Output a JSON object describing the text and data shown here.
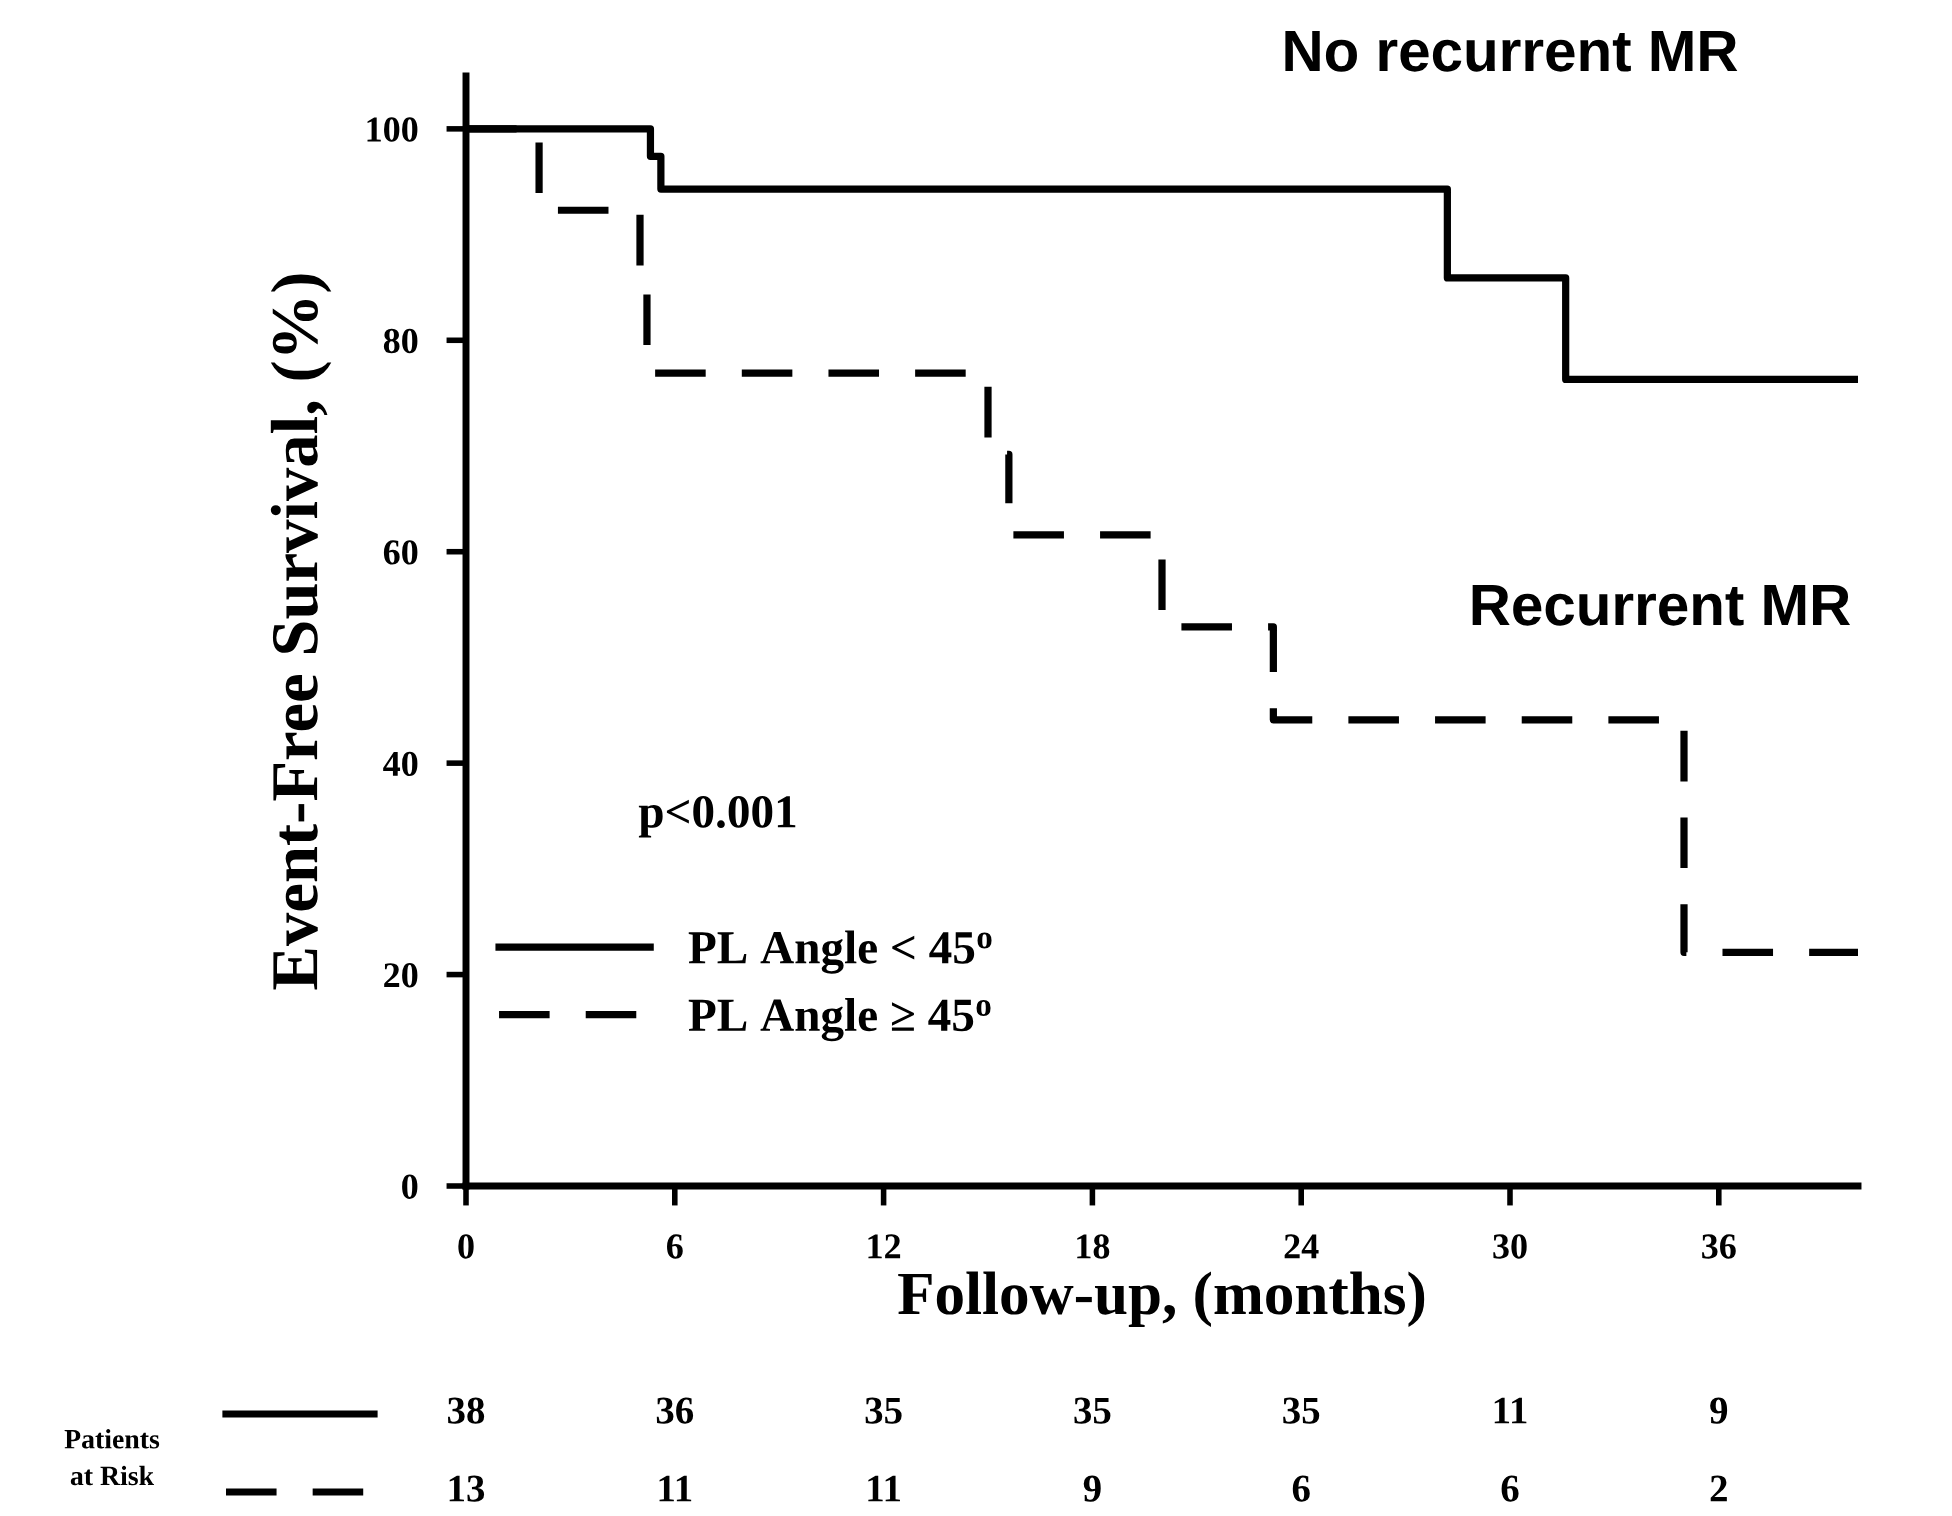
{
  "chart_data": {
    "type": "step",
    "xlabel": "Follow-up, (months)",
    "ylabel": "Event-Free Survival, (%)",
    "series": [
      {
        "name": "PL Angle < 45$^{o}$",
        "color": "#000000",
        "line_style": "solid",
        "x": [
          0,
          5.3,
          5.6,
          28.2,
          31.6,
          40
        ],
        "values": [
          100,
          97.4,
          94.3,
          85.9,
          76.3,
          76.3
        ]
      },
      {
        "name": "PL Angle ≥ 45$^{o}$",
        "color": "#000000",
        "line_style": "dashed",
        "x": [
          0,
          2.1,
          5.0,
          5.2,
          15.0,
          15.6,
          20.0,
          23.2,
          35.0,
          40
        ],
        "values": [
          100,
          92.3,
          84.6,
          76.9,
          69.2,
          61.6,
          52.9,
          44.1,
          22.1,
          22.1
        ]
      }
    ],
    "xlim": [
      0,
      40
    ],
    "xticks": [
      0,
      6,
      12,
      18,
      24,
      30,
      36
    ],
    "ylim": [
      0,
      105
    ],
    "yticks": [
      0,
      20,
      40,
      60,
      80,
      100
    ],
    "grid": false,
    "legend": "bottom left",
    "marker": "none",
    "annotations": [
      "No recurrent MR",
      "Recurrent MR",
      "p<0.001",
      "Patients\nat Risk",
      "38",
      "36",
      "35",
      "35",
      "35",
      "11",
      "9",
      "13",
      "11",
      "11",
      "9",
      "6",
      "6",
      "2"
    ]
  }
}
